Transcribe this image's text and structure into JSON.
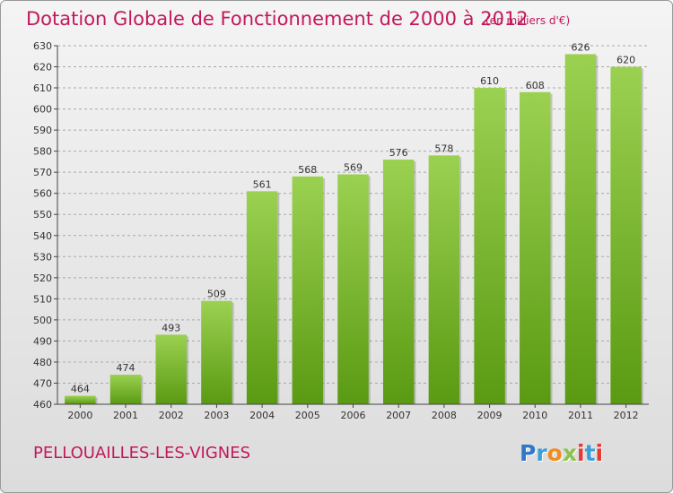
{
  "title": "Dotation Globale de Fonctionnement de 2000 à 2012",
  "unit_label": "(en milliers d'€)",
  "commune": "PELLOUAILLES-LES-VIGNES",
  "logo": {
    "letters": [
      "P",
      "r",
      "o",
      "x",
      "i",
      "t",
      "i"
    ],
    "colors": [
      "#2f78c8",
      "#3aa0d8",
      "#f28c1e",
      "#8bc34a",
      "#e53935",
      "#3aa0d8",
      "#e53935"
    ]
  },
  "colors": {
    "title": "#c2185b",
    "bar_top": "#9bd151",
    "bar_bottom": "#5a9a12",
    "grid": "#a9a9a9",
    "axis": "#444444"
  },
  "chart_data": {
    "type": "bar",
    "title": "Dotation Globale de Fonctionnement de 2000 à 2012",
    "subtitle": "(en milliers d'€)",
    "xlabel": "",
    "ylabel": "",
    "categories": [
      "2000",
      "2001",
      "2002",
      "2003",
      "2004",
      "2005",
      "2006",
      "2007",
      "2008",
      "2009",
      "2010",
      "2011",
      "2012"
    ],
    "values": [
      464,
      474,
      493,
      509,
      561,
      568,
      569,
      576,
      578,
      610,
      608,
      626,
      620
    ],
    "ylim": [
      460,
      630
    ],
    "yticks": [
      460,
      470,
      480,
      490,
      500,
      510,
      520,
      530,
      540,
      550,
      560,
      570,
      580,
      590,
      600,
      610,
      620,
      630
    ],
    "grid": true,
    "data_labels": true
  }
}
